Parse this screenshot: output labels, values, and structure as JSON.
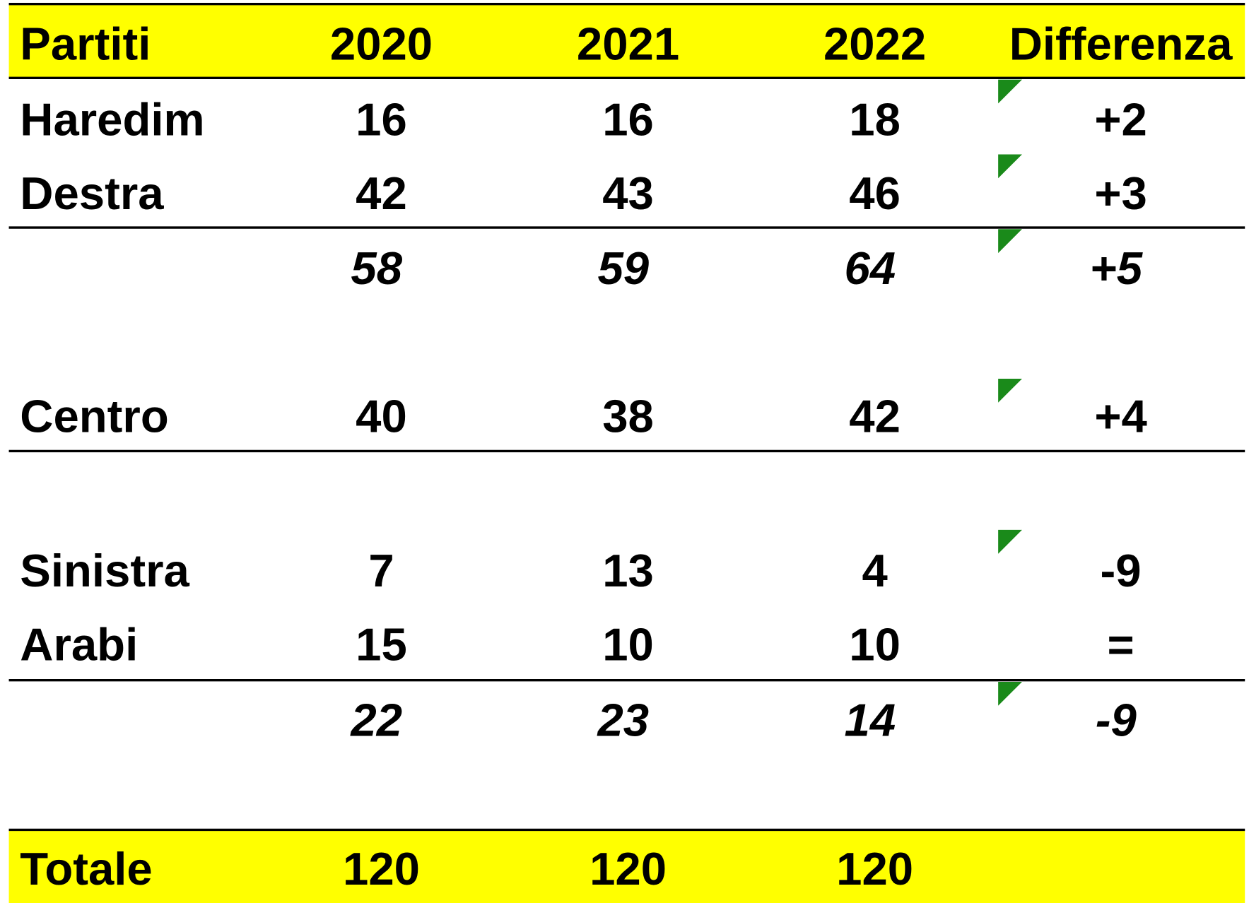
{
  "table": {
    "header": [
      "Partiti",
      "2020",
      "2021",
      "2022",
      "Differenza"
    ],
    "rows": [
      {
        "label": "Haredim",
        "cells": [
          16,
          16,
          18,
          "+2"
        ]
      },
      {
        "label": "Destra",
        "cells": [
          42,
          43,
          46,
          "+3"
        ]
      },
      {
        "subtotal": [
          58,
          59,
          64,
          "+5"
        ]
      },
      {
        "label": "Centro",
        "cells": [
          40,
          38,
          42,
          "+4"
        ]
      },
      {
        "label": "Sinistra",
        "cells": [
          7,
          13,
          4,
          "-9"
        ]
      },
      {
        "label": "Arabi",
        "cells": [
          15,
          10,
          10,
          "="
        ]
      },
      {
        "subtotal": [
          22,
          23,
          14,
          "-9"
        ]
      }
    ],
    "total": {
      "label": "Totale",
      "cells": [
        120,
        120,
        120
      ]
    }
  }
}
